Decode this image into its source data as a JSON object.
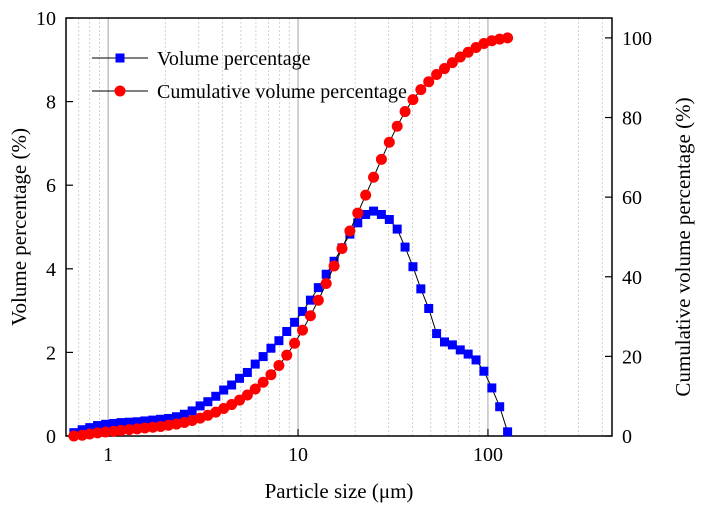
{
  "chart_data": {
    "type": "line",
    "xlabel": "Particle size (μm)",
    "ylabel": "Volume percentage (%)",
    "y2label": "Cumulative volume percentage (%)",
    "xscale": "log",
    "xlim": [
      0.6,
      450
    ],
    "ylim": [
      0,
      10
    ],
    "y2lim": [
      0,
      105
    ],
    "x_ticks": [
      1,
      10,
      100
    ],
    "x_tick_labels": [
      "1",
      "10",
      "100"
    ],
    "y_ticks": [
      0,
      2,
      4,
      6,
      8,
      10
    ],
    "y_tick_labels": [
      "0",
      "2",
      "4",
      "6",
      "8",
      "10"
    ],
    "y2_ticks": [
      0,
      20,
      40,
      60,
      80,
      100
    ],
    "y2_tick_labels": [
      "0",
      "20",
      "40",
      "60",
      "80",
      "100"
    ],
    "grid": "vertical dotted minor and major gridlines on x",
    "legend_position": "top-left",
    "series": [
      {
        "name": "Volume percentage",
        "axis": "left",
        "marker": "square",
        "color": "#0000ff",
        "points": [
          [
            0.66,
            0.08
          ],
          [
            0.73,
            0.15
          ],
          [
            0.8,
            0.2
          ],
          [
            0.88,
            0.25
          ],
          [
            0.97,
            0.28
          ],
          [
            1.07,
            0.3
          ],
          [
            1.17,
            0.32
          ],
          [
            1.29,
            0.33
          ],
          [
            1.42,
            0.34
          ],
          [
            1.56,
            0.36
          ],
          [
            1.72,
            0.38
          ],
          [
            1.89,
            0.4
          ],
          [
            2.08,
            0.42
          ],
          [
            2.29,
            0.46
          ],
          [
            2.52,
            0.52
          ],
          [
            2.77,
            0.6
          ],
          [
            3.05,
            0.72
          ],
          [
            3.35,
            0.82
          ],
          [
            3.69,
            0.95
          ],
          [
            4.06,
            1.1
          ],
          [
            4.47,
            1.22
          ],
          [
            4.92,
            1.38
          ],
          [
            5.41,
            1.52
          ],
          [
            5.95,
            1.72
          ],
          [
            6.55,
            1.9
          ],
          [
            7.2,
            2.1
          ],
          [
            7.93,
            2.28
          ],
          [
            8.72,
            2.5
          ],
          [
            9.59,
            2.72
          ],
          [
            10.56,
            2.98
          ],
          [
            11.62,
            3.25
          ],
          [
            12.79,
            3.55
          ],
          [
            14.07,
            3.87
          ],
          [
            15.48,
            4.18
          ],
          [
            17.04,
            4.5
          ],
          [
            18.75,
            4.83
          ],
          [
            20.63,
            5.1
          ],
          [
            22.7,
            5.3
          ],
          [
            24.98,
            5.38
          ],
          [
            27.48,
            5.3
          ],
          [
            30.24,
            5.18
          ],
          [
            33.27,
            4.95
          ],
          [
            36.61,
            4.52
          ],
          [
            40.28,
            4.05
          ],
          [
            44.32,
            3.52
          ],
          [
            48.77,
            3.05
          ],
          [
            53.66,
            2.45
          ],
          [
            59.05,
            2.25
          ],
          [
            64.97,
            2.18
          ],
          [
            71.49,
            2.06
          ],
          [
            78.66,
            1.96
          ],
          [
            86.56,
            1.82
          ],
          [
            95.24,
            1.55
          ],
          [
            104.8,
            1.15
          ],
          [
            115.3,
            0.7
          ],
          [
            126.9,
            0.1
          ]
        ]
      },
      {
        "name": "Cumulative volume percentage",
        "axis": "right",
        "marker": "circle",
        "color": "#ff0000",
        "points": [
          [
            0.66,
            0.0
          ],
          [
            0.73,
            0.2
          ],
          [
            0.8,
            0.5
          ],
          [
            0.88,
            0.8
          ],
          [
            0.97,
            1.0
          ],
          [
            1.07,
            1.2
          ],
          [
            1.17,
            1.4
          ],
          [
            1.29,
            1.6
          ],
          [
            1.42,
            1.8
          ],
          [
            1.56,
            2.0
          ],
          [
            1.72,
            2.2
          ],
          [
            1.89,
            2.4
          ],
          [
            2.08,
            2.7
          ],
          [
            2.29,
            3.0
          ],
          [
            2.52,
            3.4
          ],
          [
            2.77,
            3.9
          ],
          [
            3.05,
            4.5
          ],
          [
            3.35,
            5.2
          ],
          [
            3.69,
            6.0
          ],
          [
            4.06,
            6.9
          ],
          [
            4.47,
            7.9
          ],
          [
            4.92,
            9.0
          ],
          [
            5.41,
            10.3
          ],
          [
            5.95,
            11.8
          ],
          [
            6.55,
            13.5
          ],
          [
            7.2,
            15.4
          ],
          [
            7.93,
            17.7
          ],
          [
            8.72,
            20.3
          ],
          [
            9.59,
            23.3
          ],
          [
            10.56,
            26.6
          ],
          [
            11.62,
            30.2
          ],
          [
            12.79,
            34.1
          ],
          [
            14.07,
            38.3
          ],
          [
            15.48,
            42.7
          ],
          [
            17.04,
            47.1
          ],
          [
            18.75,
            51.5
          ],
          [
            20.63,
            56.0
          ],
          [
            22.7,
            60.5
          ],
          [
            24.98,
            65.0
          ],
          [
            27.48,
            69.5
          ],
          [
            30.24,
            73.8
          ],
          [
            33.27,
            77.8
          ],
          [
            36.61,
            81.5
          ],
          [
            40.28,
            84.5
          ],
          [
            44.32,
            87.0
          ],
          [
            48.77,
            89.0
          ],
          [
            53.66,
            90.8
          ],
          [
            59.05,
            92.3
          ],
          [
            64.97,
            93.8
          ],
          [
            71.49,
            95.2
          ],
          [
            78.66,
            96.4
          ],
          [
            86.56,
            97.6
          ],
          [
            95.24,
            98.6
          ],
          [
            104.8,
            99.3
          ],
          [
            115.3,
            99.7
          ],
          [
            126.9,
            100.0
          ]
        ]
      }
    ]
  }
}
